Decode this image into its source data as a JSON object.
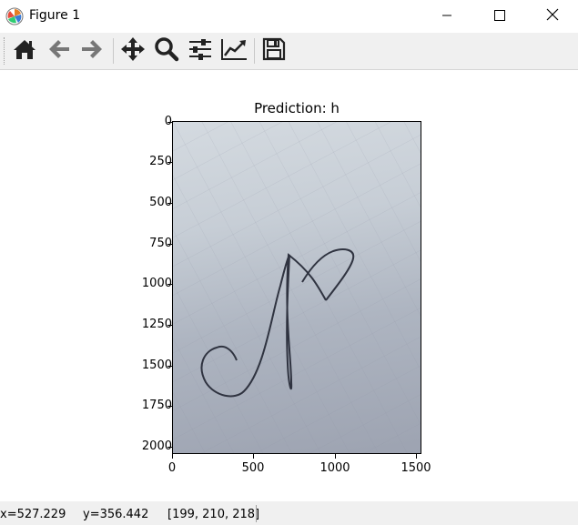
{
  "window": {
    "title": "Figure 1",
    "app_icon": "matplotlib-icon",
    "controls": [
      "minimize-icon",
      "maximize-icon",
      "close-icon"
    ]
  },
  "toolbar": {
    "tools": [
      "home-icon",
      "back-arrow-icon",
      "forward-arrow-icon",
      "pan-icon",
      "zoom-icon",
      "configure-subplots-icon",
      "edit-axes-icon",
      "save-icon"
    ]
  },
  "figure": {
    "title": "Prediction: h",
    "image_content": "handwritten letter on graph paper",
    "y_ticks": [
      "0",
      "250",
      "500",
      "750",
      "1000",
      "1250",
      "1500",
      "1750",
      "2000"
    ],
    "x_ticks": [
      "0",
      "500",
      "1000",
      "1500"
    ],
    "x_range": [
      0,
      1530
    ],
    "y_range": [
      0,
      2040
    ]
  },
  "status": {
    "x": "x=527.229",
    "y": "y=356.442",
    "rgb": "[199, 210, 218]"
  }
}
